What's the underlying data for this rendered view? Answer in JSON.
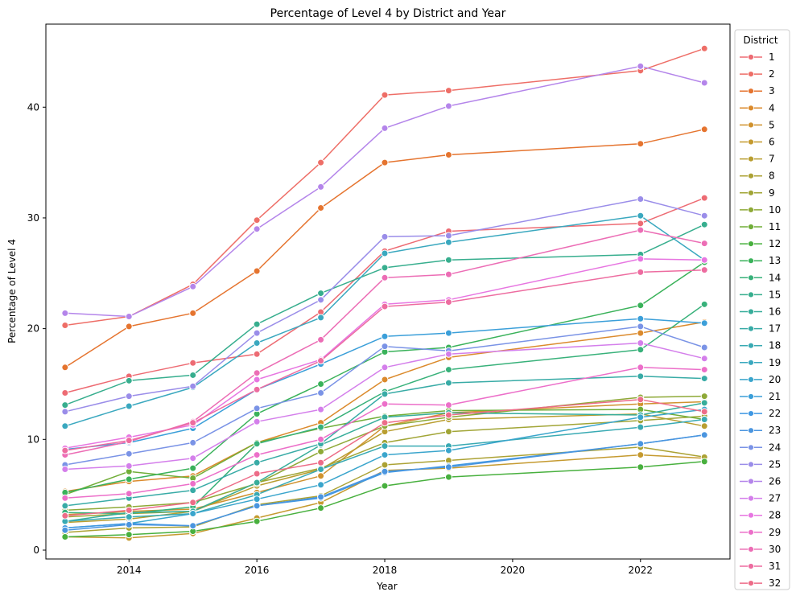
{
  "chart_data": {
    "type": "line",
    "title": "Percentage of Level 4 by District and Year",
    "xlabel": "Year",
    "ylabel": "Percentage of Level 4",
    "xlim": [
      2012.7,
      2023.4
    ],
    "ylim": [
      -0.8,
      47.5
    ],
    "x_ticks": [
      2014,
      2016,
      2018,
      2020,
      2022
    ],
    "y_ticks": [
      0,
      10,
      20,
      30,
      40
    ],
    "legend_title": "District",
    "legend_position": "outside-right",
    "grid": false,
    "x": [
      2013,
      2014,
      2015,
      2016,
      2017,
      2018,
      2019,
      2022,
      2023
    ],
    "series": [
      {
        "name": "1",
        "color": "#ed6b73",
        "values": [
          14.2,
          15.7,
          16.9,
          17.7,
          21.5,
          27.0,
          28.8,
          29.5,
          31.8
        ]
      },
      {
        "name": "2",
        "color": "#ee6e67",
        "values": [
          20.3,
          21.1,
          24.0,
          29.8,
          35.0,
          41.1,
          41.5,
          43.3,
          45.3
        ]
      },
      {
        "name": "3",
        "color": "#e5742f",
        "values": [
          16.5,
          20.2,
          21.4,
          25.2,
          30.9,
          35.0,
          35.7,
          36.7,
          38.0
        ]
      },
      {
        "name": "4",
        "color": "#db8a2c",
        "values": [
          5.3,
          6.2,
          6.7,
          9.7,
          11.5,
          15.4,
          17.4,
          19.6,
          20.6
        ]
      },
      {
        "name": "5",
        "color": "#d0922e",
        "values": [
          3.2,
          3.5,
          3.7,
          5.2,
          6.7,
          11.2,
          12.4,
          13.2,
          13.4
        ]
      },
      {
        "name": "6",
        "color": "#c59a2f",
        "values": [
          1.2,
          1.1,
          1.5,
          2.9,
          4.3,
          7.2,
          7.4,
          8.6,
          8.3
        ]
      },
      {
        "name": "7",
        "color": "#b99e30",
        "values": [
          2.5,
          2.8,
          3.5,
          5.8,
          7.3,
          10.7,
          11.8,
          12.3,
          11.2
        ]
      },
      {
        "name": "8",
        "color": "#aca234",
        "values": [
          1.6,
          2.0,
          2.1,
          4.1,
          4.9,
          7.7,
          8.1,
          9.3,
          8.4
        ]
      },
      {
        "name": "9",
        "color": "#a1a536",
        "values": [
          3.0,
          3.3,
          3.5,
          6.1,
          7.4,
          9.7,
          10.7,
          11.7,
          12.1
        ]
      },
      {
        "name": "10",
        "color": "#8ea937",
        "values": [
          3.6,
          3.9,
          4.3,
          6.0,
          8.9,
          11.2,
          12.0,
          13.8,
          13.9
        ]
      },
      {
        "name": "11",
        "color": "#71ae39",
        "values": [
          5.0,
          7.1,
          6.5,
          9.7,
          11.0,
          12.1,
          12.6,
          12.7,
          11.8
        ]
      },
      {
        "name": "12",
        "color": "#48b03e",
        "values": [
          1.2,
          1.4,
          1.7,
          2.6,
          3.8,
          5.8,
          6.6,
          7.5,
          8.0
        ]
      },
      {
        "name": "13",
        "color": "#3ab25a",
        "values": [
          5.2,
          6.4,
          7.4,
          12.3,
          15.0,
          17.9,
          18.3,
          22.1,
          26.0
        ]
      },
      {
        "name": "14",
        "color": "#38b17a",
        "values": [
          3.4,
          3.3,
          3.9,
          9.6,
          11.1,
          14.3,
          16.3,
          18.1,
          22.2
        ]
      },
      {
        "name": "15",
        "color": "#37ae8e",
        "values": [
          13.1,
          15.3,
          15.8,
          20.4,
          23.2,
          25.5,
          26.2,
          26.7,
          29.4
        ]
      },
      {
        "name": "16",
        "color": "#37ad9a",
        "values": [
          2.6,
          3.4,
          3.5,
          6.1,
          9.5,
          12.0,
          12.4,
          12.2,
          13.3
        ]
      },
      {
        "name": "17",
        "color": "#38aba6",
        "values": [
          4.0,
          4.7,
          5.4,
          7.9,
          9.6,
          14.1,
          15.1,
          15.7,
          15.5
        ]
      },
      {
        "name": "18",
        "color": "#39aab3",
        "values": [
          2.6,
          3.0,
          3.3,
          5.0,
          7.3,
          9.4,
          9.4,
          11.1,
          11.8
        ]
      },
      {
        "name": "19",
        "color": "#3aa8bf",
        "values": [
          11.2,
          13.0,
          14.7,
          18.7,
          21.0,
          26.8,
          27.8,
          30.2,
          26.2
        ]
      },
      {
        "name": "20",
        "color": "#3aa5cc",
        "values": [
          2.0,
          2.4,
          3.3,
          4.6,
          5.9,
          8.6,
          9.0,
          12.0,
          12.7
        ]
      },
      {
        "name": "21",
        "color": "#3b9fd9",
        "values": [
          9.1,
          9.7,
          11.0,
          14.5,
          16.8,
          19.3,
          19.6,
          20.9,
          20.5
        ]
      },
      {
        "name": "22",
        "color": "#3f98e3",
        "values": [
          2.0,
          2.4,
          2.2,
          4.0,
          4.7,
          7.0,
          7.6,
          9.6,
          10.4
        ]
      },
      {
        "name": "23",
        "color": "#4a95df",
        "values": [
          1.8,
          2.3,
          2.2,
          4.0,
          4.8,
          7.1,
          7.5,
          9.6,
          10.4
        ]
      },
      {
        "name": "24",
        "color": "#7a93e6",
        "values": [
          7.7,
          8.7,
          9.7,
          12.8,
          14.2,
          18.4,
          18.0,
          20.2,
          18.3
        ]
      },
      {
        "name": "25",
        "color": "#9a8de9",
        "values": [
          12.5,
          13.9,
          14.8,
          19.6,
          22.6,
          28.3,
          28.4,
          31.7,
          30.2
        ]
      },
      {
        "name": "26",
        "color": "#b485ea",
        "values": [
          21.4,
          21.1,
          23.8,
          29.0,
          32.8,
          38.1,
          40.1,
          43.7,
          42.2
        ]
      },
      {
        "name": "27",
        "color": "#d47feb",
        "values": [
          7.3,
          7.6,
          8.3,
          11.6,
          12.7,
          16.5,
          17.7,
          18.7,
          17.3
        ]
      },
      {
        "name": "28",
        "color": "#e776e1",
        "values": [
          9.2,
          10.2,
          11.3,
          15.4,
          17.2,
          22.2,
          22.6,
          26.3,
          26.2
        ]
      },
      {
        "name": "29",
        "color": "#ec6fc9",
        "values": [
          4.7,
          5.1,
          6.0,
          8.6,
          10.0,
          13.2,
          13.1,
          16.5,
          16.3
        ]
      },
      {
        "name": "30",
        "color": "#ec6db5",
        "values": [
          8.6,
          9.8,
          11.6,
          16.0,
          19.0,
          24.6,
          24.9,
          28.9,
          27.7
        ]
      },
      {
        "name": "31",
        "color": "#ed6ca0",
        "values": [
          9.0,
          9.9,
          11.5,
          14.5,
          17.1,
          22.0,
          22.4,
          25.1,
          25.3
        ]
      },
      {
        "name": "32",
        "color": "#ed6c88",
        "values": [
          3.1,
          3.6,
          4.3,
          6.9,
          7.9,
          11.5,
          12.2,
          13.6,
          12.5
        ]
      }
    ]
  }
}
